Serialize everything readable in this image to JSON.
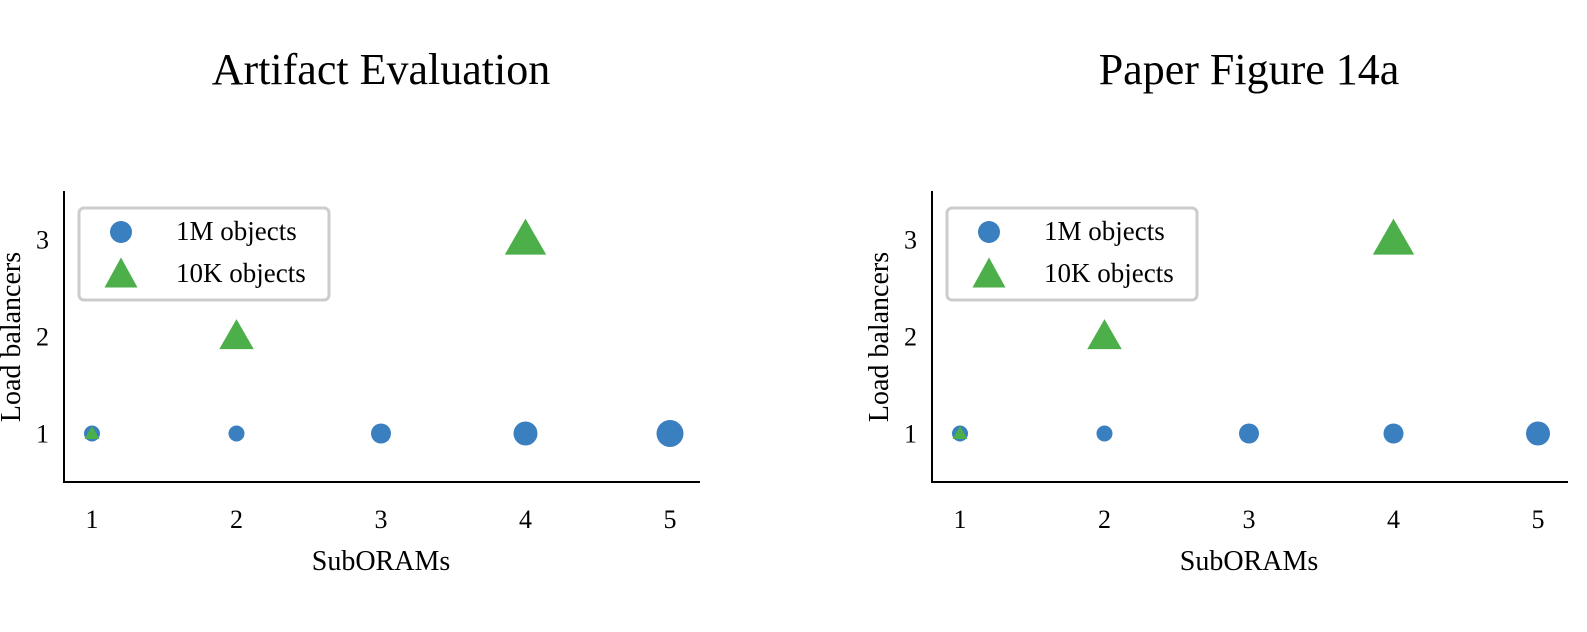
{
  "chart_data": [
    {
      "type": "scatter",
      "title": "Artifact Evaluation",
      "xlabel": "SubORAMs",
      "ylabel": "Load balancers",
      "xticks": [
        "1",
        "2",
        "3",
        "4",
        "5"
      ],
      "yticks": [
        "1",
        "2",
        "3"
      ],
      "xlim": [
        0.8,
        5.2
      ],
      "ylim": [
        0.5,
        3.5
      ],
      "legend_position": "top-left",
      "series": [
        {
          "name": "1M objects",
          "marker": "circle",
          "color": "#3a7fbf",
          "points": [
            {
              "x": 1,
              "y": 1,
              "size": "small"
            },
            {
              "x": 2,
              "y": 1,
              "size": "small"
            },
            {
              "x": 3,
              "y": 1,
              "size": "medium"
            },
            {
              "x": 4,
              "y": 1,
              "size": "large"
            },
            {
              "x": 5,
              "y": 1,
              "size": "xlarge"
            }
          ]
        },
        {
          "name": "10K objects",
          "marker": "triangle",
          "color": "#4caf4a",
          "points": [
            {
              "x": 1,
              "y": 1,
              "size": "tiny"
            },
            {
              "x": 2,
              "y": 2,
              "size": "medium"
            },
            {
              "x": 4,
              "y": 3,
              "size": "large"
            }
          ]
        }
      ]
    },
    {
      "type": "scatter",
      "title": "Paper Figure 14a",
      "xlabel": "SubORAMs",
      "ylabel": "Load balancers",
      "xticks": [
        "1",
        "2",
        "3",
        "4",
        "5"
      ],
      "yticks": [
        "1",
        "2",
        "3"
      ],
      "xlim": [
        0.8,
        5.2
      ],
      "ylim": [
        0.5,
        3.5
      ],
      "legend_position": "top-left",
      "series": [
        {
          "name": "1M objects",
          "marker": "circle",
          "color": "#3a7fbf",
          "points": [
            {
              "x": 1,
              "y": 1,
              "size": "small"
            },
            {
              "x": 2,
              "y": 1,
              "size": "small"
            },
            {
              "x": 3,
              "y": 1,
              "size": "medium"
            },
            {
              "x": 4,
              "y": 1,
              "size": "medium"
            },
            {
              "x": 5,
              "y": 1,
              "size": "large"
            }
          ]
        },
        {
          "name": "10K objects",
          "marker": "triangle",
          "color": "#4caf4a",
          "points": [
            {
              "x": 1,
              "y": 1,
              "size": "tiny"
            },
            {
              "x": 2,
              "y": 2,
              "size": "medium"
            },
            {
              "x": 4,
              "y": 3,
              "size": "large"
            }
          ]
        }
      ]
    }
  ]
}
